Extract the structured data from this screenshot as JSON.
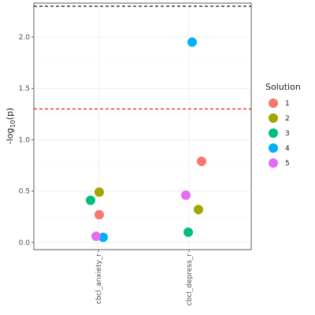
{
  "chart_data": {
    "type": "scatter",
    "title": "",
    "ylabel": "-log10(p)",
    "ylabel_base": "-log",
    "ylabel_sub": "10",
    "ylabel_tail": "(p)",
    "xlabel": "",
    "ylim": [
      -0.07,
      2.33
    ],
    "yticks": [
      0.0,
      0.5,
      1.0,
      1.5,
      2.0
    ],
    "ytick_labels": [
      "0.0",
      "0.5",
      "1.0",
      "1.5",
      "2.0"
    ],
    "categories": [
      "cbcl_anxiety_r",
      "cbcl_depress_r"
    ],
    "grid": true,
    "legend_placement": "right",
    "legend_title": "Solution",
    "reference_lines": [
      {
        "y": 2.3,
        "color": "#000000",
        "style": "dashed"
      },
      {
        "y": 1.3,
        "color": "#ff0000",
        "style": "dashed"
      }
    ],
    "series": [
      {
        "name": "1",
        "color": "#F8766D",
        "points": [
          {
            "category": "cbcl_anxiety_r",
            "y": 0.27
          },
          {
            "category": "cbcl_depress_r",
            "y": 0.79
          }
        ]
      },
      {
        "name": "2",
        "color": "#A3A500",
        "points": [
          {
            "category": "cbcl_anxiety_r",
            "y": 0.49
          },
          {
            "category": "cbcl_depress_r",
            "y": 0.32
          }
        ]
      },
      {
        "name": "3",
        "color": "#00BF7D",
        "points": [
          {
            "category": "cbcl_anxiety_r",
            "y": 0.41
          },
          {
            "category": "cbcl_depress_r",
            "y": 0.1
          }
        ]
      },
      {
        "name": "4",
        "color": "#00B0F6",
        "points": [
          {
            "category": "cbcl_anxiety_r",
            "y": 0.05
          },
          {
            "category": "cbcl_depress_r",
            "y": 1.95
          }
        ]
      },
      {
        "name": "5",
        "color": "#E76BF3",
        "points": [
          {
            "category": "cbcl_anxiety_r",
            "y": 0.06
          },
          {
            "category": "cbcl_depress_r",
            "y": 0.46
          }
        ]
      }
    ]
  }
}
